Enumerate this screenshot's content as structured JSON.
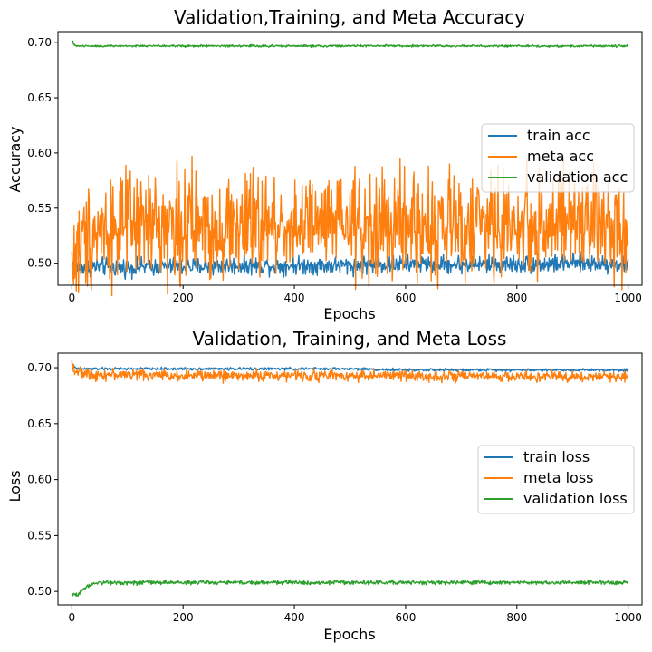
{
  "figure": {
    "background": "#ffffff",
    "colors": {
      "blue": "#1f77b4",
      "orange": "#ff7f0e",
      "green": "#2ca02c"
    }
  },
  "chart_data": [
    {
      "type": "line",
      "title": "Validation,Training, and Meta Accuracy",
      "xlabel": "Epochs",
      "ylabel": "Accuracy",
      "xlim": [
        -25,
        1025
      ],
      "ylim": [
        0.48,
        0.71
      ],
      "xticks": [
        0,
        200,
        400,
        600,
        800,
        1000
      ],
      "yticks": [
        0.5,
        0.55,
        0.6,
        0.65,
        0.7
      ],
      "xtick_labels": [
        "0",
        "200",
        "400",
        "600",
        "800",
        "1000"
      ],
      "ytick_labels": [
        "0.50",
        "0.55",
        "0.60",
        "0.65",
        "0.70"
      ],
      "grid": false,
      "legend_position": "center-right",
      "series": [
        {
          "name": "train acc",
          "color": "#1f77b4",
          "x": [
            0,
            50,
            100,
            150,
            200,
            250,
            300,
            350,
            400,
            450,
            500,
            550,
            600,
            650,
            700,
            750,
            800,
            850,
            900,
            950,
            1000
          ],
          "y": [
            0.497,
            0.497,
            0.496,
            0.497,
            0.497,
            0.497,
            0.498,
            0.498,
            0.498,
            0.498,
            0.498,
            0.499,
            0.499,
            0.499,
            0.499,
            0.499,
            0.499,
            0.499,
            0.5,
            0.5,
            0.499
          ],
          "noise": 0.004
        },
        {
          "name": "meta acc",
          "color": "#ff7f0e",
          "x": [
            0,
            5,
            15,
            30,
            50,
            100,
            150,
            200,
            250,
            300,
            350,
            400,
            450,
            500,
            550,
            600,
            650,
            700,
            750,
            800,
            850,
            900,
            950,
            1000
          ],
          "y": [
            0.5,
            0.505,
            0.515,
            0.527,
            0.532,
            0.533,
            0.534,
            0.534,
            0.532,
            0.534,
            0.533,
            0.535,
            0.533,
            0.534,
            0.533,
            0.534,
            0.534,
            0.534,
            0.535,
            0.534,
            0.535,
            0.536,
            0.535,
            0.536
          ],
          "noise": 0.024
        },
        {
          "name": "validation acc",
          "color": "#2ca02c",
          "x": [
            0,
            3,
            8,
            20,
            50,
            100,
            200,
            300,
            400,
            500,
            600,
            700,
            800,
            900,
            1000
          ],
          "y": [
            0.702,
            0.699,
            0.697,
            0.697,
            0.697,
            0.697,
            0.697,
            0.697,
            0.697,
            0.697,
            0.697,
            0.697,
            0.697,
            0.697,
            0.697
          ],
          "noise": 0.0005
        }
      ]
    },
    {
      "type": "line",
      "title": "Validation, Training, and Meta Loss",
      "xlabel": "Epochs",
      "ylabel": "Loss",
      "xlim": [
        -25,
        1025
      ],
      "ylim": [
        0.488,
        0.713
      ],
      "xticks": [
        0,
        200,
        400,
        600,
        800,
        1000
      ],
      "yticks": [
        0.5,
        0.55,
        0.6,
        0.65,
        0.7
      ],
      "xtick_labels": [
        "0",
        "200",
        "400",
        "600",
        "800",
        "1000"
      ],
      "ytick_labels": [
        "0.50",
        "0.55",
        "0.60",
        "0.65",
        "0.70"
      ],
      "grid": false,
      "legend_position": "center-right",
      "series": [
        {
          "name": "train loss",
          "color": "#1f77b4",
          "x": [
            0,
            5,
            10,
            50,
            100,
            200,
            300,
            400,
            500,
            600,
            700,
            800,
            900,
            1000
          ],
          "y": [
            0.703,
            0.7,
            0.699,
            0.699,
            0.699,
            0.699,
            0.699,
            0.699,
            0.699,
            0.698,
            0.698,
            0.698,
            0.698,
            0.698
          ],
          "noise": 0.0006
        },
        {
          "name": "meta loss",
          "color": "#ff7f0e",
          "x": [
            0,
            5,
            15,
            50,
            100,
            200,
            300,
            400,
            500,
            600,
            700,
            800,
            900,
            1000
          ],
          "y": [
            0.704,
            0.698,
            0.695,
            0.694,
            0.694,
            0.693,
            0.693,
            0.693,
            0.693,
            0.693,
            0.692,
            0.692,
            0.692,
            0.692
          ],
          "noise": 0.0024
        },
        {
          "name": "validation loss",
          "color": "#2ca02c",
          "x": [
            0,
            5,
            10,
            20,
            30,
            40,
            60,
            100,
            200,
            300,
            400,
            500,
            600,
            700,
            800,
            900,
            1000
          ],
          "y": [
            0.496,
            0.498,
            0.497,
            0.502,
            0.505,
            0.508,
            0.508,
            0.508,
            0.508,
            0.508,
            0.508,
            0.508,
            0.508,
            0.508,
            0.508,
            0.508,
            0.508
          ],
          "noise": 0.0009
        }
      ]
    }
  ]
}
